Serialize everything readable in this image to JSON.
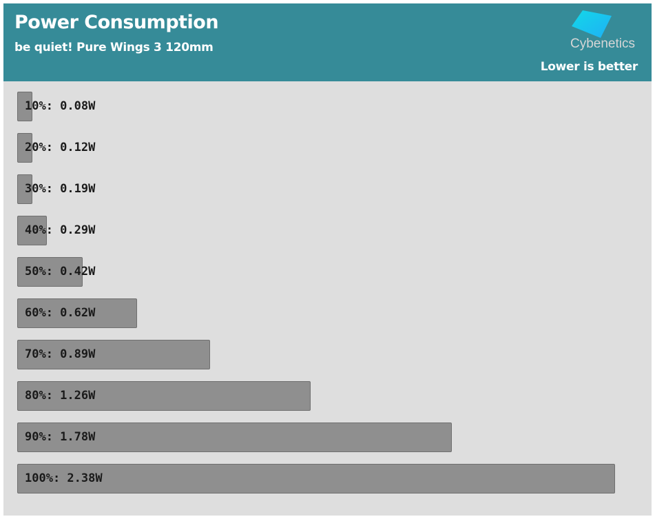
{
  "header": {
    "title": "Power Consumption",
    "subtitle": "be quiet! Pure Wings 3 120mm",
    "logo": "Cybenetics",
    "note": "Lower is better"
  },
  "colors": {
    "header_bg": "#368b98",
    "plot_bg": "#dedede",
    "bar": "#8f8f8f"
  },
  "chart_data": {
    "type": "bar",
    "orientation": "horizontal",
    "title": "Power Consumption",
    "subtitle": "be quiet! Pure Wings 3 120mm",
    "categories": [
      "10%",
      "20%",
      "30%",
      "40%",
      "50%",
      "60%",
      "70%",
      "80%",
      "90%",
      "100%"
    ],
    "values": [
      0.08,
      0.12,
      0.19,
      0.29,
      0.42,
      0.62,
      0.89,
      1.26,
      1.78,
      2.38
    ],
    "unit": "W",
    "labels": [
      "10%: 0.08W",
      "20%: 0.12W",
      "30%: 0.19W",
      "40%: 0.29W",
      "50%: 0.42W",
      "60%: 0.62W",
      "70%: 0.89W",
      "80%: 1.26W",
      "90%: 1.78W",
      "100%: 2.38W"
    ],
    "xlabel": "",
    "ylabel": "",
    "xlim": [
      0.18,
      2.38
    ],
    "grid": false
  }
}
